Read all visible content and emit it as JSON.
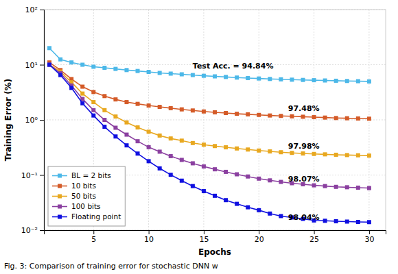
{
  "chart_data": {
    "type": "line",
    "x_label": "Epochs",
    "y_label": "Training Error (%)",
    "caption": "Fig. 3: Comparison of training error for stochastic DNN w",
    "x": [
      1,
      2,
      3,
      4,
      5,
      6,
      7,
      8,
      9,
      10,
      11,
      12,
      13,
      14,
      15,
      16,
      17,
      18,
      19,
      20,
      21,
      22,
      23,
      24,
      25,
      26,
      27,
      28,
      29,
      30
    ],
    "series": [
      {
        "name": "BL = 2 bits",
        "color": "#4CB8E8",
        "marker": "square",
        "values": [
          20.0,
          12.5,
          11.0,
          10.0,
          9.2,
          8.8,
          8.4,
          8.0,
          7.7,
          7.4,
          7.1,
          6.9,
          6.7,
          6.5,
          6.3,
          6.15,
          6.0,
          5.85,
          5.72,
          5.62,
          5.52,
          5.44,
          5.36,
          5.3,
          5.24,
          5.18,
          5.12,
          5.07,
          5.03,
          4.98
        ]
      },
      {
        "name": "10 bits",
        "color": "#D45B28",
        "marker": "square",
        "values": [
          11.0,
          8.0,
          5.5,
          4.0,
          3.2,
          2.7,
          2.35,
          2.1,
          1.95,
          1.82,
          1.72,
          1.63,
          1.55,
          1.48,
          1.42,
          1.37,
          1.33,
          1.29,
          1.26,
          1.23,
          1.2,
          1.18,
          1.16,
          1.14,
          1.12,
          1.1,
          1.08,
          1.07,
          1.06,
          1.05
        ]
      },
      {
        "name": "50 bits",
        "color": "#E8A820",
        "marker": "square",
        "values": [
          10.0,
          7.5,
          4.8,
          3.0,
          2.1,
          1.5,
          1.15,
          0.9,
          0.73,
          0.61,
          0.52,
          0.46,
          0.42,
          0.38,
          0.355,
          0.335,
          0.318,
          0.303,
          0.29,
          0.278,
          0.268,
          0.259,
          0.252,
          0.246,
          0.241,
          0.237,
          0.233,
          0.23,
          0.228,
          0.225
        ]
      },
      {
        "name": "100 bits",
        "color": "#8B40A0",
        "marker": "square",
        "values": [
          10.0,
          7.0,
          4.2,
          2.4,
          1.5,
          1.0,
          0.72,
          0.54,
          0.41,
          0.32,
          0.265,
          0.22,
          0.188,
          0.163,
          0.143,
          0.127,
          0.114,
          0.103,
          0.094,
          0.086,
          0.08,
          0.075,
          0.071,
          0.068,
          0.065,
          0.063,
          0.061,
          0.06,
          0.059,
          0.058
        ]
      },
      {
        "name": "Floating point",
        "color": "#1010E0",
        "marker": "square",
        "values": [
          10.0,
          6.5,
          3.8,
          2.0,
          1.2,
          0.75,
          0.5,
          0.345,
          0.245,
          0.178,
          0.132,
          0.101,
          0.079,
          0.063,
          0.051,
          0.042,
          0.035,
          0.03,
          0.026,
          0.023,
          0.02,
          0.018,
          0.017,
          0.016,
          0.015,
          0.0148,
          0.0145,
          0.0143,
          0.0141,
          0.014
        ]
      }
    ],
    "annotations": [
      {
        "text": "Test Acc. = 94.84%",
        "x": 14.0,
        "y": 8.5
      },
      {
        "text": "97.48%",
        "x": 25.5,
        "y": 1.45
      },
      {
        "text": "97.98%",
        "x": 25.5,
        "y": 0.305
      },
      {
        "text": "98.07%",
        "x": 25.5,
        "y": 0.077
      },
      {
        "text": "98.04%",
        "x": 25.5,
        "y": 0.0155
      }
    ],
    "log": "y",
    "xlim": [
      0.5,
      31.5
    ],
    "xticks": [
      5,
      10,
      15,
      20,
      25,
      30
    ],
    "ylim": [
      0.01,
      100
    ],
    "yticks": [
      {
        "value": 0.01,
        "label": "10⁻²"
      },
      {
        "value": 0.1,
        "label": "10⁻¹"
      },
      {
        "value": 1,
        "label": "10⁰"
      },
      {
        "value": 10,
        "label": "10¹"
      },
      {
        "value": 100,
        "label": "10²"
      }
    ],
    "grid": true,
    "legend": "lower left"
  }
}
